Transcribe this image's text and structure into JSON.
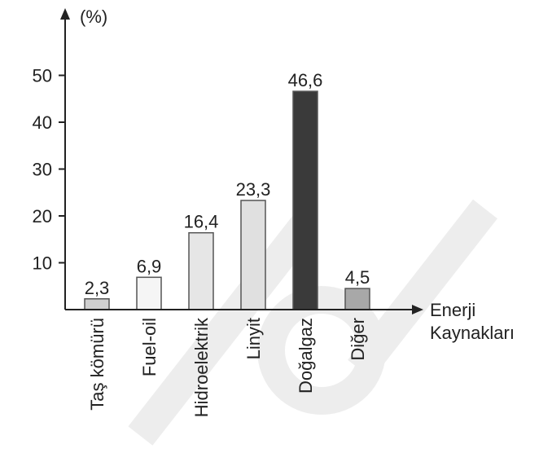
{
  "chart_data": {
    "type": "bar",
    "categories": [
      "Taş kömürü",
      "Fuel-oil",
      "Hidroelektrik",
      "Linyit",
      "Doğalgaz",
      "Diğer"
    ],
    "values": [
      2.3,
      6.9,
      16.4,
      23.3,
      46.6,
      4.5
    ],
    "value_labels": [
      "2,3",
      "6,9",
      "16,4",
      "23,3",
      "46,6",
      "4,5"
    ],
    "bar_colors": [
      "#cfcfcf",
      "#f5f5f5",
      "#e6e6e6",
      "#e0e0e0",
      "#3a3a3a",
      "#a8a8a8"
    ],
    "ylabel": "(%)",
    "xlabel_line1": "Enerji",
    "xlabel_line2": "Kaynakları",
    "yticks": [
      10,
      20,
      30,
      40,
      50
    ],
    "ytick_labels": [
      "10",
      "20",
      "30",
      "40",
      "50"
    ],
    "ylim": [
      0,
      55
    ],
    "grid": false,
    "legend": "none"
  }
}
